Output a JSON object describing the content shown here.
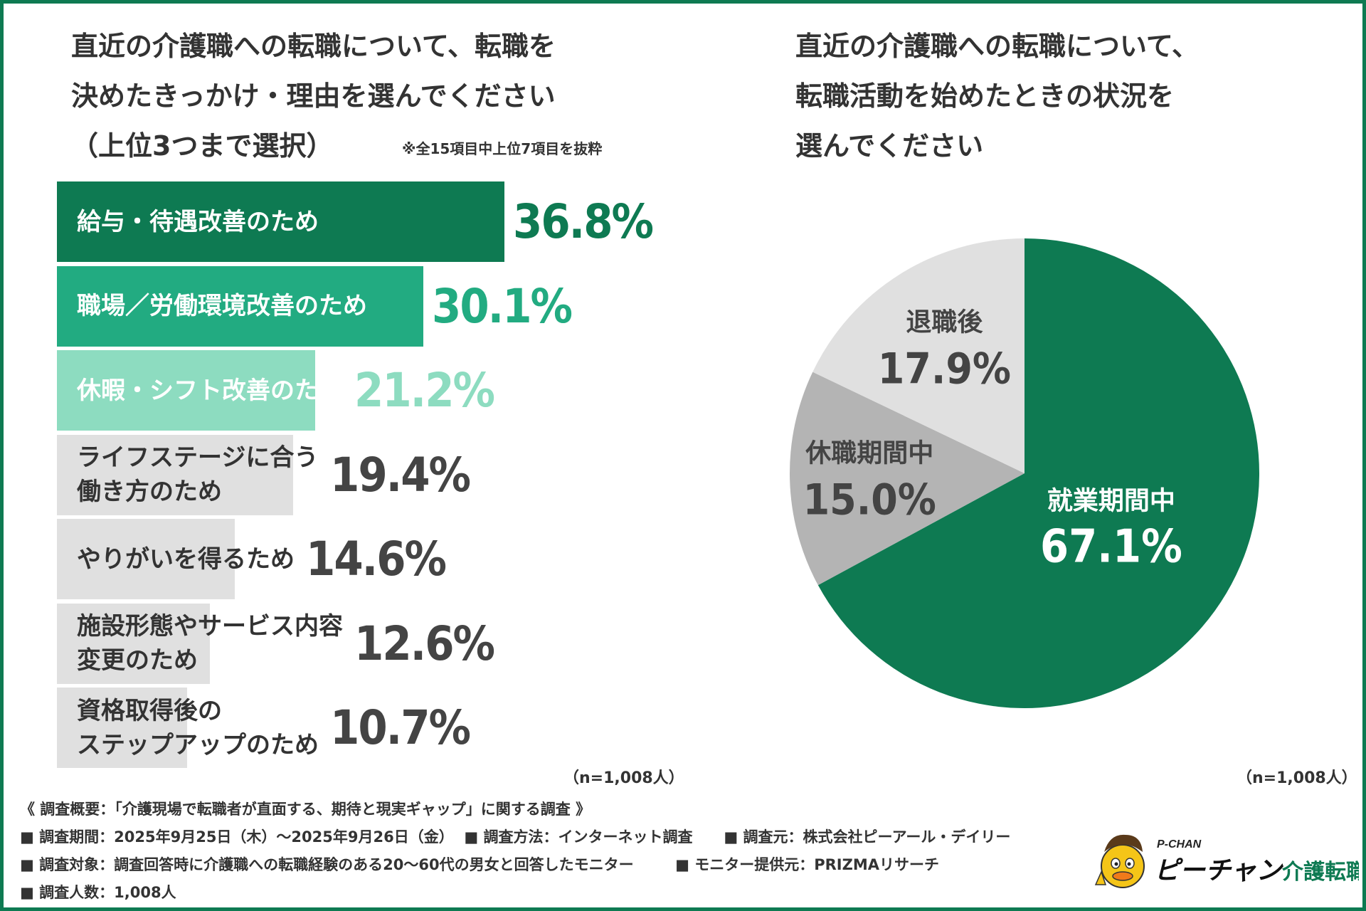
{
  "left_panel": {
    "title_lines": [
      "直近の介護職への転職について、転職を",
      "決めたきっかけ・理由を選んでください",
      "（上位3つまで選択）"
    ],
    "note": "※全15項目中上位7項目を抜粋",
    "sample_size": "（n=1,008人）"
  },
  "right_panel": {
    "title_lines": [
      "直近の介護職への転職について、",
      "転職活動を始めたときの状況を",
      "選んでください"
    ],
    "sample_size": "（n=1,008人）"
  },
  "chart_data": [
    {
      "type": "bar",
      "orientation": "horizontal",
      "title": "直近の介護職への転職について、転職を決めたきっかけ・理由を選んでください（上位3つまで選択）",
      "categories": [
        [
          "給与・待遇改善のため"
        ],
        [
          "職場／労働環境改善のため"
        ],
        [
          "休暇・シフト改善のため"
        ],
        [
          "ライフステージに合う",
          "働き方のため"
        ],
        [
          "やりがいを得るため"
        ],
        [
          "施設形態やサービス内容",
          "変更のため"
        ],
        [
          "資格取得後の",
          "ステップアップのため"
        ]
      ],
      "values": [
        36.8,
        30.1,
        21.2,
        19.4,
        14.6,
        12.6,
        10.7
      ],
      "value_labels": [
        "36.8%",
        "30.1%",
        "21.2%",
        "19.4%",
        "14.6%",
        "12.6%",
        "10.7%"
      ],
      "unit": "%",
      "xlim": [
        0,
        40
      ],
      "bar_colors": [
        "#0e7a52",
        "#22ab81",
        "#8ddcc0",
        "#e0e0e0",
        "#e0e0e0",
        "#e0e0e0",
        "#e0e0e0"
      ],
      "label_colors": [
        "#ffffff",
        "#ffffff",
        "#ffffff",
        "#333333",
        "#333333",
        "#333333",
        "#333333"
      ],
      "value_colors": [
        "#0e7a52",
        "#22ab81",
        "#8ddcc0",
        "#444444",
        "#444444",
        "#444444",
        "#444444"
      ]
    },
    {
      "type": "pie",
      "title": "直近の介護職への転職について、転職活動を始めたときの状況を選んでください",
      "labels": [
        "就業期間中",
        "休職期間中",
        "退職後"
      ],
      "values": [
        67.1,
        15.0,
        17.9
      ],
      "value_labels": [
        "67.1%",
        "15.0%",
        "17.9%"
      ],
      "colors": [
        "#0e7a52",
        "#b4b4b4",
        "#e0e0e0"
      ],
      "text_colors": [
        "#ffffff",
        "#444444",
        "#444444"
      ],
      "start": "12 o'clock, clockwise"
    }
  ],
  "footer": {
    "lines": [
      "《 調査概要：「介護現場で転職者が直面する、期待と現実ギャップ」に関する調査 》",
      "■ 調査期間：2025年9月25日（木）〜2025年9月26日（金）  ■ 調査方法：インターネット調査      ■ 調査元：株式会社ピーアール・デイリー",
      "■ 調査対象：調査回答時に介護職への転職経験のある20〜60代の男女と回答したモニター        ■ モニター提供元：PRIZMAリサーチ",
      "■ 調査人数：1,008人"
    ]
  },
  "logo": {
    "small_text": "P-CHAN",
    "brand_text": "ピーチャン",
    "suffix_text": "介護転職",
    "brand_color": "#0e7a52"
  },
  "colors": {
    "frame": "#0e7a52",
    "dark_green": "#0e7a52",
    "mid_green": "#22ab81",
    "light_green": "#8ddcc0",
    "gray_bar": "#e0e0e0",
    "pie_gray": "#b4b4b4"
  }
}
